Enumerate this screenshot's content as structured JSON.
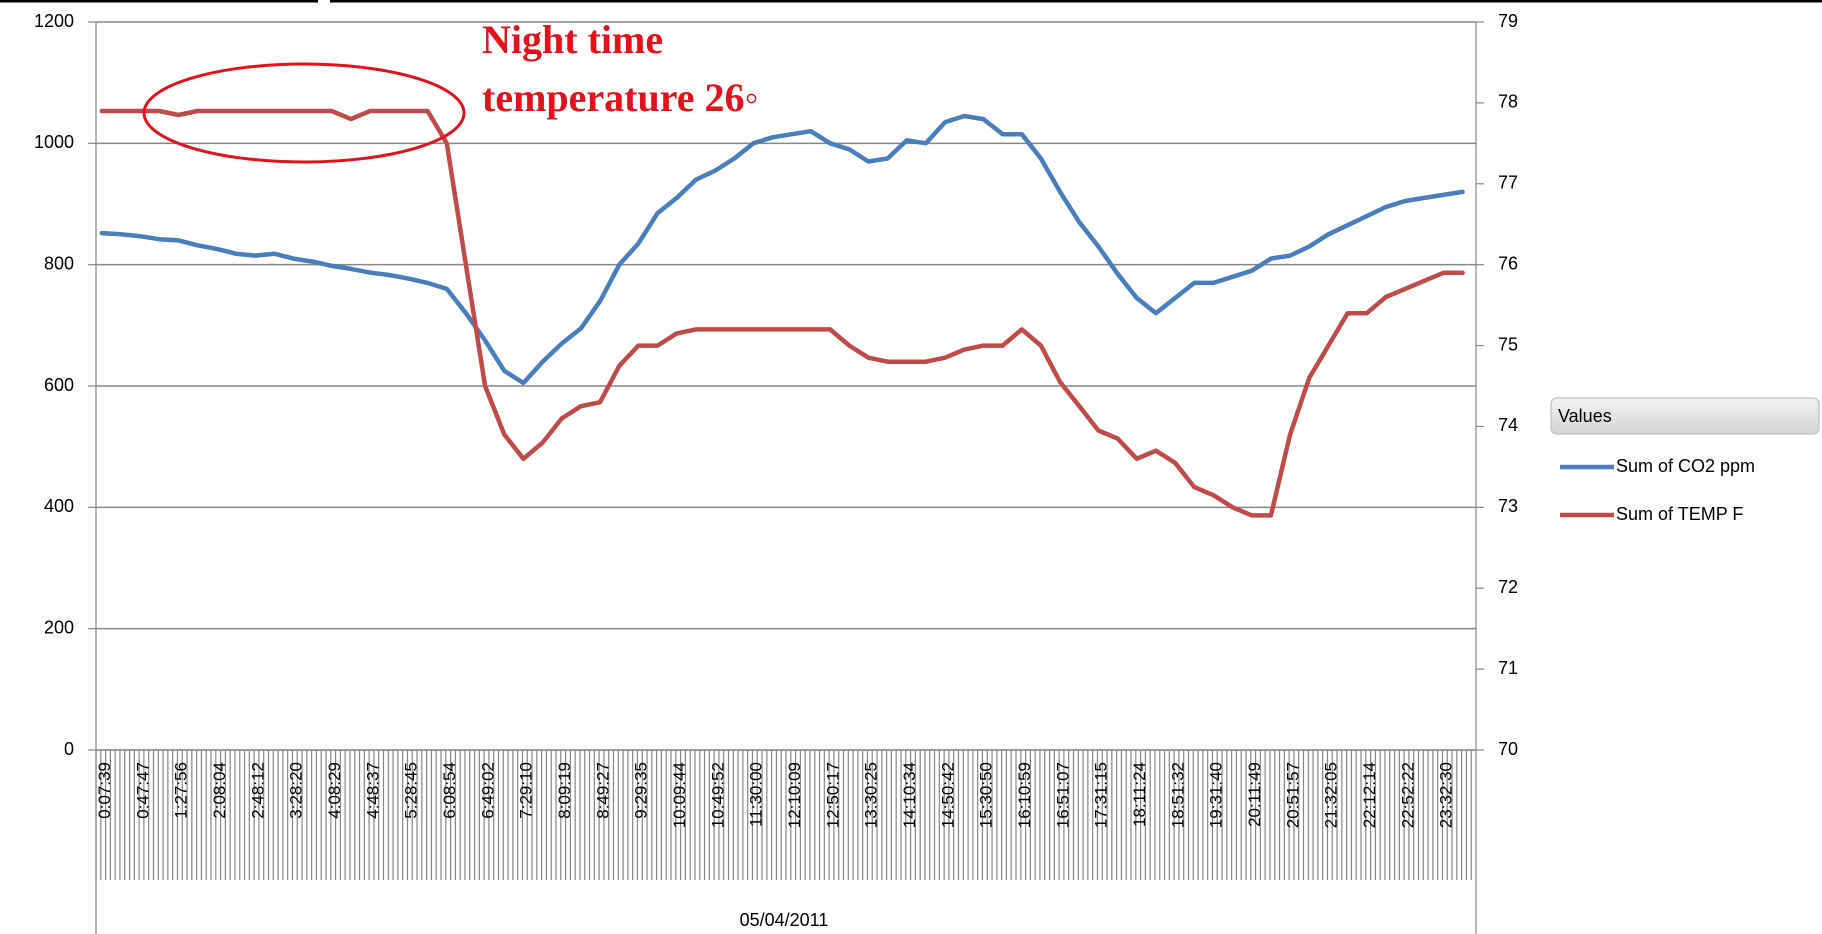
{
  "chart_data": {
    "type": "line",
    "annotation": [
      "Night time",
      "temperature 26◦"
    ],
    "xlabel": "05/04/2011",
    "legend_title": "Values",
    "legend": "right",
    "grid": true,
    "categories": [
      "0:07:39",
      null,
      "0:47:47",
      null,
      "1:27:56",
      null,
      "2:08:04",
      null,
      "2:48:12",
      null,
      "3:28:20",
      null,
      "4:08:29",
      null,
      "4:48:37",
      null,
      "5:28:45",
      null,
      "6:08:54",
      null,
      "6:49:02",
      null,
      "7:29:10",
      null,
      "8:09:19",
      null,
      "8:49:27",
      null,
      "9:29:35",
      null,
      "10:09:44",
      null,
      "10:49:52",
      null,
      "11:30:00",
      null,
      "12:10:09",
      null,
      "12:50:17",
      null,
      "13:30:25",
      null,
      "14:10:34",
      null,
      "14:50:42",
      null,
      "15:30:50",
      null,
      "16:10:59",
      null,
      "16:51:07",
      null,
      "17:31:15",
      null,
      "18:11:24",
      null,
      "18:51:32",
      null,
      "19:31:40",
      null,
      "20:11:49",
      null,
      "20:51:57",
      null,
      "21:32:05",
      null,
      "22:12:14",
      null,
      "22:52:22",
      null,
      "23:32:30",
      null
    ],
    "ylim": [
      0,
      1200
    ],
    "yticks": [
      0,
      200,
      400,
      600,
      800,
      1000,
      1200
    ],
    "y2lim": [
      70,
      79
    ],
    "y2ticks": [
      70,
      71,
      72,
      73,
      74,
      75,
      76,
      77,
      78,
      79
    ],
    "series": [
      {
        "name": "Sum of CO2 ppm",
        "color": "#4a7ebb",
        "values": [
          852,
          850,
          847,
          842,
          840,
          832,
          826,
          818,
          815,
          818,
          810,
          805,
          798,
          793,
          787,
          783,
          777,
          770,
          760,
          720,
          675,
          625,
          605,
          640,
          670,
          695,
          740,
          800,
          835,
          885,
          910,
          940,
          955,
          975,
          1000,
          1010,
          1015,
          1020,
          1000,
          990,
          970,
          975,
          1005,
          1000,
          1035,
          1045,
          1040,
          1015,
          1015,
          975,
          920,
          870,
          830,
          785,
          745,
          720,
          745,
          770,
          770,
          780,
          790,
          810,
          815,
          830,
          850,
          865,
          880,
          895,
          905,
          910,
          915,
          920
        ]
      },
      {
        "name": "Sum of TEMP  F",
        "color": "#be4b48",
        "axis": "y2",
        "values": [
          77.9,
          77.9,
          77.9,
          77.9,
          77.85,
          77.9,
          77.9,
          77.9,
          77.9,
          77.9,
          77.9,
          77.9,
          77.9,
          77.8,
          77.9,
          77.9,
          77.9,
          77.9,
          77.5,
          76.0,
          74.5,
          73.9,
          73.6,
          73.8,
          74.1,
          74.25,
          74.3,
          74.75,
          75.0,
          75.0,
          75.15,
          75.2,
          75.2,
          75.2,
          75.2,
          75.2,
          75.2,
          75.2,
          75.2,
          75.0,
          74.85,
          74.8,
          74.8,
          74.8,
          74.85,
          74.95,
          75.0,
          75.0,
          75.2,
          75.0,
          74.55,
          74.25,
          73.95,
          73.85,
          73.6,
          73.7,
          73.55,
          73.25,
          73.15,
          73.0,
          72.9,
          72.9,
          73.9,
          74.6,
          75.0,
          75.4,
          75.4,
          75.6,
          75.7,
          75.8,
          75.9,
          75.9
        ]
      }
    ]
  }
}
